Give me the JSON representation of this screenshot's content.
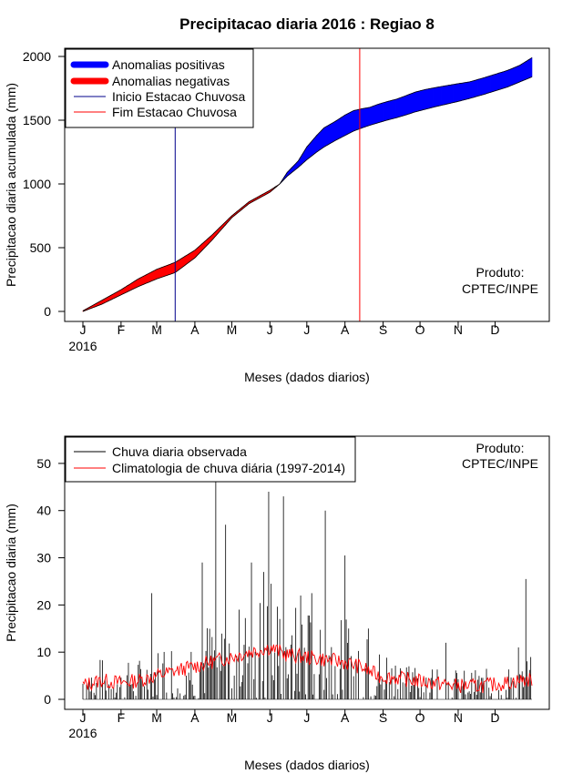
{
  "chart_data": [
    {
      "type": "area",
      "title": "Precipitacao diaria 2016 : Regiao 8",
      "xlabel": "Meses (dados diarios)",
      "ylabel": "Precipitacao diaria acumulada (mm)",
      "year_label": "2016",
      "month_labels": [
        "J",
        "F",
        "M",
        "A",
        "M",
        "J",
        "J",
        "A",
        "S",
        "O",
        "N",
        "D"
      ],
      "ylim": [
        0,
        2000
      ],
      "yticks": [
        "0",
        "500",
        "1000",
        "1500",
        "2000"
      ],
      "legend": [
        {
          "label": "Anomalias positivas",
          "color": "#0000ff",
          "style": "thick"
        },
        {
          "label": "Anomalias negativas",
          "color": "#ff0000",
          "style": "thick"
        },
        {
          "label": "Inicio Estacao Chuvosa",
          "color": "#00008b",
          "style": "line"
        },
        {
          "label": "Fim Estacao Chuvosa",
          "color": "#ff0000",
          "style": "line"
        }
      ],
      "product_label": [
        "Produto:",
        "CPTEC/INPE"
      ],
      "rain_season_start_day": 75,
      "rain_season_end_day": 225,
      "day": [
        0,
        15,
        31,
        45,
        60,
        75,
        91,
        105,
        121,
        135,
        152,
        160,
        166,
        175,
        182,
        190,
        196,
        205,
        213,
        220,
        227,
        233,
        240,
        247,
        255,
        262,
        270,
        278,
        286,
        295,
        304,
        314,
        325,
        335,
        345,
        355,
        365
      ],
      "observed_cumulative": [
        0,
        55,
        130,
        195,
        255,
        305,
        420,
        560,
        735,
        845,
        935,
        1000,
        1090,
        1180,
        1290,
        1380,
        1440,
        1490,
        1540,
        1575,
        1590,
        1600,
        1625,
        1645,
        1665,
        1690,
        1720,
        1740,
        1755,
        1770,
        1785,
        1800,
        1830,
        1860,
        1890,
        1930,
        1990
      ],
      "climatology_cumulative": [
        5,
        85,
        170,
        255,
        330,
        385,
        480,
        600,
        750,
        860,
        950,
        1000,
        1060,
        1130,
        1190,
        1250,
        1290,
        1340,
        1380,
        1415,
        1440,
        1460,
        1480,
        1500,
        1520,
        1540,
        1565,
        1585,
        1605,
        1625,
        1645,
        1670,
        1700,
        1730,
        1760,
        1800,
        1840
      ]
    },
    {
      "type": "bar",
      "xlabel": "Meses (dados diarios)",
      "ylabel": "Precipitacao diaria (mm)",
      "year_label": "2016",
      "month_labels": [
        "J",
        "F",
        "M",
        "A",
        "M",
        "J",
        "J",
        "A",
        "S",
        "O",
        "N",
        "D"
      ],
      "ylim": [
        0,
        55
      ],
      "yticks": [
        "0",
        "10",
        "20",
        "30",
        "40",
        "50"
      ],
      "legend": [
        {
          "label": "Chuva diaria observada",
          "color": "#000000",
          "style": "line"
        },
        {
          "label": "Climatologia de chuva diária (1997-2014)",
          "color": "#ff0000",
          "style": "line"
        }
      ],
      "product_label": [
        "Produto:",
        "CPTEC/INPE"
      ],
      "climatology_daily_x": [
        0,
        15,
        31,
        45,
        60,
        75,
        91,
        105,
        121,
        135,
        152,
        165,
        180,
        195,
        210,
        225,
        240,
        255,
        270,
        285,
        300,
        315,
        330,
        345,
        355,
        365
      ],
      "climatology_daily_y": [
        3,
        4,
        3.5,
        4,
        5,
        6,
        7,
        8,
        9,
        10,
        11,
        9.5,
        9,
        8.5,
        8,
        7,
        5,
        4.5,
        4,
        3.5,
        3,
        2.8,
        3,
        3.5,
        4,
        4.2
      ],
      "observed_daily_peaks": [
        {
          "day": 56,
          "mm": 22.5
        },
        {
          "day": 97,
          "mm": 29
        },
        {
          "day": 108,
          "mm": 47
        },
        {
          "day": 116,
          "mm": 37
        },
        {
          "day": 127,
          "mm": 19
        },
        {
          "day": 137,
          "mm": 29
        },
        {
          "day": 147,
          "mm": 27
        },
        {
          "day": 151,
          "mm": 44
        },
        {
          "day": 153,
          "mm": 24.5
        },
        {
          "day": 163,
          "mm": 43
        },
        {
          "day": 177,
          "mm": 22
        },
        {
          "day": 186,
          "mm": 22.5
        },
        {
          "day": 197,
          "mm": 40
        },
        {
          "day": 213,
          "mm": 30.5
        },
        {
          "day": 232,
          "mm": 15
        },
        {
          "day": 295,
          "mm": 12
        },
        {
          "day": 360,
          "mm": 25.5
        },
        {
          "day": 354,
          "mm": 11
        }
      ]
    }
  ]
}
